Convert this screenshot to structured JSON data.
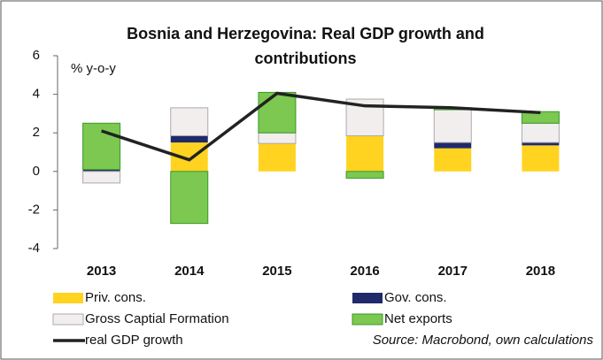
{
  "chart_data": {
    "type": "bar",
    "stacked": true,
    "title": "Bosnia and Herzegovina: Real GDP growth and contributions",
    "y_label": "% y-o-y",
    "source": "Source: Macrobond, own calculations",
    "categories": [
      "2013",
      "2014",
      "2015",
      "2016",
      "2017",
      "2018"
    ],
    "series": [
      {
        "name": "Priv. cons.",
        "color": "#ffd320",
        "values": [
          0,
          1.5,
          1.45,
          1.85,
          1.2,
          1.35
        ]
      },
      {
        "name": "Gov. cons.",
        "color": "#1f2a6b",
        "values": [
          0.1,
          0.35,
          0,
          0,
          0.3,
          0.15
        ]
      },
      {
        "name": "Gross Captial Formation",
        "color": "#f2eeee",
        "values": [
          -0.6,
          1.45,
          0.55,
          1.9,
          1.7,
          1.0
        ]
      },
      {
        "name": "Net exports",
        "color": "#7cc850",
        "values": [
          2.4,
          -2.7,
          2.1,
          -0.35,
          0.1,
          0.6
        ]
      },
      {
        "name": "real GDP growth",
        "color": "#222222",
        "type": "line",
        "values": [
          2.1,
          0.6,
          4.05,
          3.4,
          3.3,
          3.05
        ]
      }
    ],
    "ylim": [
      -4,
      6
    ],
    "yticks": [
      -4,
      -2,
      0,
      2,
      4,
      6
    ]
  }
}
